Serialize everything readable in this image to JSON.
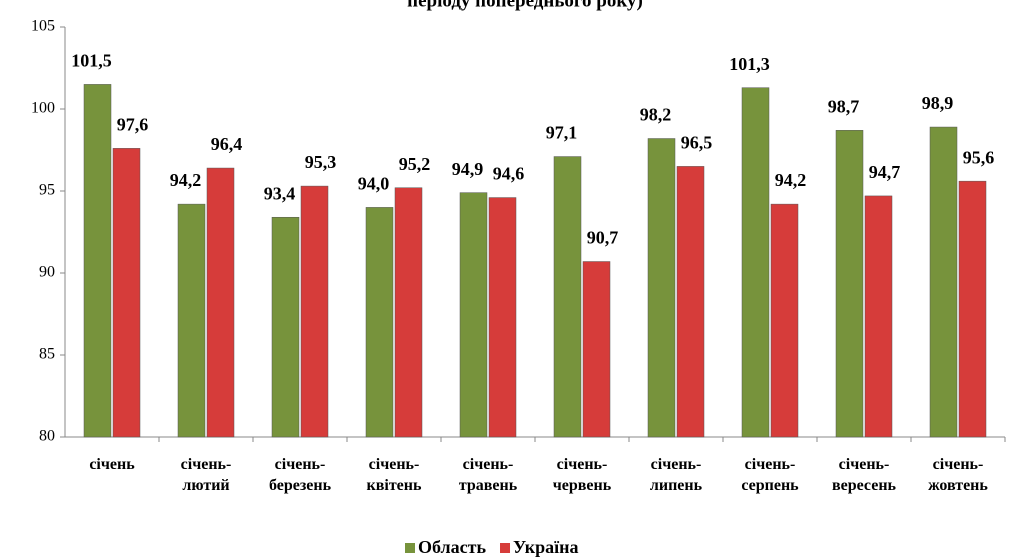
{
  "chart_data": {
    "type": "bar",
    "title": "періоду попереднього року)",
    "categories": [
      "січень",
      "січень-лютий",
      "січень-березень",
      "січень-квітень",
      "січень-травень",
      "січень-червень",
      "січень-липень",
      "січень-серпень",
      "січень-вересень",
      "січень-жовтень"
    ],
    "series": [
      {
        "name": "Область",
        "color": "#77933c",
        "values": [
          101.5,
          94.2,
          93.4,
          94.0,
          94.9,
          97.1,
          98.2,
          101.3,
          98.7,
          98.9
        ],
        "value_labels": [
          "101,5",
          "94,2",
          "93,4",
          "94,0",
          "94,9",
          "97,1",
          "98,2",
          "101,3",
          "98,7",
          "98,9"
        ]
      },
      {
        "name": "Україна",
        "color": "#d63c3a",
        "values": [
          97.6,
          96.4,
          95.3,
          95.2,
          94.6,
          90.7,
          96.5,
          94.2,
          94.7,
          95.6
        ],
        "value_labels": [
          "97,6",
          "96,4",
          "95,3",
          "95,2",
          "94,6",
          "90,7",
          "96,5",
          "94,2",
          "94,7",
          "95,6"
        ]
      }
    ],
    "ylim": [
      80,
      105
    ],
    "yticks": [
      80,
      85,
      90,
      95,
      100,
      105
    ],
    "legend": "bottom"
  }
}
